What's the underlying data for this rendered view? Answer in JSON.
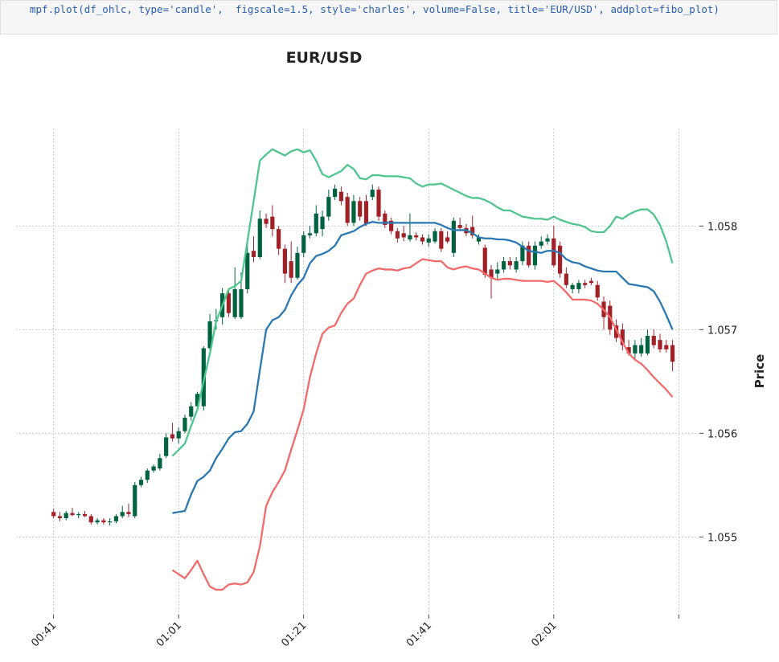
{
  "code": "mpf.plot(df_ohlc, type='candle',  figscale=1.5, style='charles', volume=False, title='EUR/USD', addplot=fibo_plot)",
  "chart_data": {
    "type": "candlestick",
    "title": "EUR/USD",
    "ylabel": "Price",
    "up_color": "#006340",
    "down_color": "#a02128",
    "grid": true,
    "ylim": [
      1.05425,
      1.05894
    ],
    "yticks": [
      1.055,
      1.056,
      1.057,
      1.058
    ],
    "xlim": [
      -6,
      103.3
    ],
    "xticks": [
      {
        "value": 0,
        "label": "00:41"
      },
      {
        "value": 20,
        "label": "01:01"
      },
      {
        "value": 40,
        "label": "01:21"
      },
      {
        "value": 60,
        "label": "01:41"
      },
      {
        "value": 80,
        "label": "02:01"
      },
      {
        "value": 100,
        "label": null
      }
    ],
    "open": [
      1.05524,
      1.0552,
      1.05518,
      1.05523,
      1.05521,
      1.05522,
      1.0552,
      1.05514,
      1.05516,
      1.05514,
      1.05515,
      1.0552,
      1.05524,
      1.0552,
      1.0555,
      1.05555,
      1.05564,
      1.05566,
      1.05578,
      1.05599,
      1.05595,
      1.05602,
      1.05616,
      1.05626,
      1.05626,
      1.05682,
      1.05708,
      1.05712,
      1.05735,
      1.05712,
      1.05712,
      1.05739,
      1.05776,
      1.0577,
      1.05807,
      1.05809,
      1.05797,
      1.05778,
      1.05766,
      1.0575,
      1.05774,
      1.05791,
      1.05793,
      1.05797,
      1.05809,
      1.05828,
      1.05833,
      1.05828,
      1.05803,
      1.05824,
      1.05824,
      1.05828,
      1.05835,
      1.05812,
      1.05805,
      1.05795,
      1.05793,
      1.05787,
      1.05791,
      1.05789,
      1.05784,
      1.05785,
      1.05795,
      1.05789,
      1.05774,
      1.05801,
      1.05798,
      1.05799,
      1.05785,
      1.05779,
      1.05758,
      1.05754,
      1.05758,
      1.05766,
      1.05758,
      1.05766,
      1.05781,
      1.05762,
      1.05781,
      1.05785,
      1.05788,
      1.05781,
      1.05754,
      1.05739,
      1.05739,
      1.05745,
      1.05747,
      1.05743,
      1.05727,
      1.05723,
      1.05704,
      1.057,
      1.05683,
      1.05677,
      1.05677,
      1.05677,
      1.05694,
      1.0569,
      1.05685,
      1.05685
    ],
    "high": [
      1.05527,
      1.05524,
      1.05525,
      1.05528,
      1.05524,
      1.05525,
      1.05522,
      1.05518,
      1.05518,
      1.05518,
      1.05522,
      1.0553,
      1.05532,
      1.05553,
      1.05558,
      1.05566,
      1.0557,
      1.0558,
      1.056,
      1.0561,
      1.05606,
      1.05618,
      1.0563,
      1.0564,
      1.05684,
      1.05715,
      1.0572,
      1.0574,
      1.0574,
      1.0576,
      1.05755,
      1.05782,
      1.0579,
      1.05815,
      1.05812,
      1.0582,
      1.058,
      1.05782,
      1.05785,
      1.0578,
      1.05795,
      1.058,
      1.0582,
      1.05815,
      1.05835,
      1.0584,
      1.05838,
      1.05832,
      1.0583,
      1.05828,
      1.0583,
      1.0584,
      1.05838,
      1.05815,
      1.05808,
      1.05798,
      1.058,
      1.05812,
      1.05794,
      1.05792,
      1.05792,
      1.05798,
      1.05798,
      1.05795,
      1.05808,
      1.05808,
      1.05802,
      1.0581,
      1.05792,
      1.05782,
      1.05762,
      1.05765,
      1.0577,
      1.0577,
      1.0577,
      1.05785,
      1.05785,
      1.05785,
      1.0579,
      1.05792,
      1.058,
      1.05785,
      1.0576,
      1.05745,
      1.05748,
      1.05748,
      1.0575,
      1.05747,
      1.05732,
      1.05728,
      1.0571,
      1.05706,
      1.0569,
      1.0569,
      1.05692,
      1.057,
      1.057,
      1.05696,
      1.0569,
      1.0569
    ],
    "low": [
      1.05518,
      1.05515,
      1.05516,
      1.0552,
      1.05518,
      1.05519,
      1.05512,
      1.05512,
      1.05512,
      1.05511,
      1.05513,
      1.05518,
      1.05519,
      1.05518,
      1.05548,
      1.05552,
      1.05562,
      1.05564,
      1.05576,
      1.05592,
      1.0559,
      1.056,
      1.05612,
      1.05622,
      1.05622,
      1.05675,
      1.057,
      1.05705,
      1.05712,
      1.0571,
      1.0571,
      1.05735,
      1.05765,
      1.05768,
      1.05798,
      1.0579,
      1.05772,
      1.05745,
      1.05745,
      1.05748,
      1.0577,
      1.05788,
      1.0579,
      1.0579,
      1.05805,
      1.05825,
      1.0582,
      1.058,
      1.058,
      1.05805,
      1.058,
      1.05825,
      1.05805,
      1.05798,
      1.05792,
      1.05784,
      1.05785,
      1.05785,
      1.05786,
      1.05782,
      1.0578,
      1.05783,
      1.05775,
      1.05783,
      1.0577,
      1.05795,
      1.0579,
      1.05788,
      1.05782,
      1.0575,
      1.0573,
      1.05748,
      1.05755,
      1.05758,
      1.05755,
      1.05762,
      1.0576,
      1.05758,
      1.05778,
      1.05782,
      1.0576,
      1.0575,
      1.0574,
      1.05735,
      1.05735,
      1.0574,
      1.05743,
      1.05728,
      1.057,
      1.05695,
      1.05688,
      1.0568,
      1.05675,
      1.05672,
      1.05674,
      1.05675,
      1.05682,
      1.05678,
      1.05678,
      1.0566
    ],
    "close": [
      1.0552,
      1.05518,
      1.05523,
      1.05521,
      1.05522,
      1.0552,
      1.05514,
      1.05516,
      1.05514,
      1.05515,
      1.0552,
      1.05524,
      1.05522,
      1.0555,
      1.05555,
      1.05564,
      1.05568,
      1.05576,
      1.05596,
      1.05595,
      1.05602,
      1.05615,
      1.05626,
      1.05638,
      1.05682,
      1.05708,
      1.05709,
      1.05735,
      1.05716,
      1.05739,
      1.05739,
      1.05774,
      1.0577,
      1.05807,
      1.05802,
      1.05797,
      1.05778,
      1.05754,
      1.0575,
      1.05774,
      1.05791,
      1.05793,
      1.05812,
      1.05809,
      1.05828,
      1.05836,
      1.05824,
      1.05803,
      1.05824,
      1.05809,
      1.05802,
      1.05835,
      1.05809,
      1.05801,
      1.05795,
      1.05788,
      1.05789,
      1.05791,
      1.05789,
      1.05785,
      1.05788,
      1.05795,
      1.05778,
      1.05785,
      1.05805,
      1.05798,
      1.05793,
      1.05791,
      1.05789,
      1.05753,
      1.0575,
      1.05758,
      1.05766,
      1.05762,
      1.05766,
      1.05781,
      1.05762,
      1.05781,
      1.05785,
      1.05788,
      1.05762,
      1.05754,
      1.05743,
      1.05743,
      1.05745,
      1.05743,
      1.05745,
      1.05731,
      1.05712,
      1.057,
      1.05692,
      1.05685,
      1.05677,
      1.05685,
      1.05685,
      1.05694,
      1.05685,
      1.05681,
      1.05681,
      1.05669
    ],
    "series": [
      {
        "color": "#4fc68e",
        "values": [
          null,
          null,
          null,
          null,
          null,
          null,
          null,
          null,
          null,
          null,
          null,
          null,
          null,
          null,
          null,
          null,
          null,
          null,
          null,
          1.05578,
          1.05584,
          1.0559,
          1.05607,
          1.05623,
          1.0565,
          1.05677,
          1.05708,
          1.05723,
          1.05739,
          1.05742,
          1.05747,
          1.05785,
          1.05824,
          1.05863,
          1.05869,
          1.05874,
          1.05871,
          1.05868,
          1.05872,
          1.05874,
          1.05871,
          1.05873,
          1.05863,
          1.0585,
          1.05847,
          1.0585,
          1.05853,
          1.05859,
          1.05855,
          1.05846,
          1.05845,
          1.05849,
          1.05849,
          1.05848,
          1.05848,
          1.05848,
          1.05847,
          1.05846,
          1.05841,
          1.05838,
          1.0584,
          1.0584,
          1.05841,
          1.05838,
          1.05835,
          1.05832,
          1.05829,
          1.05827,
          1.05827,
          1.05825,
          1.05822,
          1.05818,
          1.05815,
          1.05815,
          1.05812,
          1.05809,
          1.05808,
          1.05807,
          1.05807,
          1.05806,
          1.05809,
          1.05806,
          1.05804,
          1.05802,
          1.05801,
          1.05799,
          1.05795,
          1.05794,
          1.05794,
          1.058,
          1.05809,
          1.05807,
          1.05811,
          1.05814,
          1.05816,
          1.05816,
          1.05811,
          1.05801,
          1.05785,
          1.05764
        ]
      },
      {
        "color": "#2a78b2",
        "values": [
          null,
          null,
          null,
          null,
          null,
          null,
          null,
          null,
          null,
          null,
          null,
          null,
          null,
          null,
          null,
          null,
          null,
          null,
          null,
          1.05523,
          1.05524,
          1.05525,
          1.05541,
          1.05554,
          1.05558,
          1.05564,
          1.05576,
          1.05585,
          1.05595,
          1.05601,
          1.05602,
          1.05609,
          1.05621,
          1.05661,
          1.057,
          1.05709,
          1.05712,
          1.05719,
          1.05733,
          1.05743,
          1.0575,
          1.05764,
          1.05771,
          1.05773,
          1.05776,
          1.05781,
          1.05791,
          1.05793,
          1.05795,
          1.05799,
          1.05802,
          1.05804,
          1.05803,
          1.05803,
          1.05803,
          1.05803,
          1.05803,
          1.05803,
          1.05803,
          1.05803,
          1.05803,
          1.05803,
          1.05801,
          1.05798,
          1.05796,
          1.05796,
          1.05796,
          1.05793,
          1.05789,
          1.05788,
          1.05788,
          1.05787,
          1.05787,
          1.05786,
          1.05784,
          1.0578,
          1.05776,
          1.05775,
          1.05774,
          1.05776,
          1.05776,
          1.05774,
          1.05768,
          1.05765,
          1.05764,
          1.05761,
          1.05759,
          1.05757,
          1.05756,
          1.05756,
          1.05756,
          1.0575,
          1.05744,
          1.05743,
          1.05742,
          1.05741,
          1.05737,
          1.05727,
          1.05714,
          1.057
        ]
      },
      {
        "color": "#f26b6b",
        "values": [
          null,
          null,
          null,
          null,
          null,
          null,
          null,
          null,
          null,
          null,
          null,
          null,
          null,
          null,
          null,
          null,
          null,
          null,
          null,
          1.05468,
          1.05464,
          1.0546,
          1.05468,
          1.05477,
          1.05464,
          1.05452,
          1.05449,
          1.05449,
          1.05454,
          1.05455,
          1.05454,
          1.05456,
          1.05466,
          1.05491,
          1.0553,
          1.05543,
          1.05553,
          1.05564,
          1.05584,
          1.05603,
          1.05623,
          1.05654,
          1.05677,
          1.05696,
          1.05702,
          1.05704,
          1.05716,
          1.05725,
          1.0573,
          1.05743,
          1.05754,
          1.05757,
          1.05759,
          1.05758,
          1.05758,
          1.05757,
          1.05759,
          1.0576,
          1.05764,
          1.05768,
          1.05767,
          1.05766,
          1.05766,
          1.0576,
          1.05758,
          1.0576,
          1.05761,
          1.05759,
          1.05758,
          1.05754,
          1.0575,
          1.05748,
          1.05749,
          1.05749,
          1.05748,
          1.05747,
          1.05747,
          1.05747,
          1.05747,
          1.05746,
          1.05747,
          1.05742,
          1.05736,
          1.05729,
          1.05729,
          1.05729,
          1.05728,
          1.05725,
          1.05719,
          1.05712,
          1.057,
          1.05688,
          1.05677,
          1.05671,
          1.05667,
          1.05661,
          1.05654,
          1.05648,
          1.05642,
          1.05635
        ]
      }
    ]
  }
}
